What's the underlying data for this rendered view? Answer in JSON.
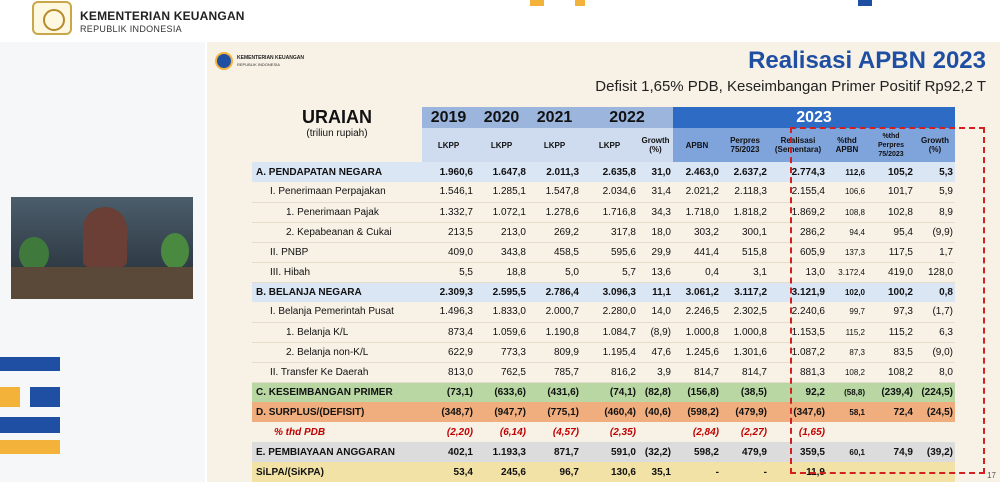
{
  "header": {
    "ministry_name": "KEMENTERIAN KEUANGAN",
    "ministry_sub": "REPUBLIK INDONESIA"
  },
  "slide": {
    "logo_name": "KEMENTERIAN KEUANGAN",
    "logo_sub": "REPUBLIK INDONESIA",
    "title": "Realisasi APBN 2023",
    "subtitle": "Defisit 1,65% PDB, Keseimbangan Primer Positif Rp92,2 T",
    "page_number": "17"
  },
  "table": {
    "uraian_label": "URAIAN",
    "unit_label": "(triliun rupiah)",
    "years": [
      "2019",
      "2020",
      "2021",
      "2022",
      "2023"
    ],
    "subheaders": [
      "LKPP",
      "LKPP",
      "LKPP",
      "LKPP",
      "Growth (%)",
      "APBN",
      "Perpres 75/2023",
      "Realisasi (Sementara)",
      "%thd APBN",
      "%thd Perpres 75/2023",
      "Growth (%)"
    ],
    "rows": [
      {
        "label": "A.   PENDAPATAN NEGARA",
        "values": [
          "1.960,6",
          "1.647,8",
          "2.011,3",
          "2.635,8",
          "31,0",
          "2.463,0",
          "2.637,2",
          "2.774,3",
          "112,6",
          "105,2",
          "5,3"
        ]
      },
      {
        "label": "I.    Penerimaan Perpajakan",
        "values": [
          "1.546,1",
          "1.285,1",
          "1.547,8",
          "2.034,6",
          "31,4",
          "2.021,2",
          "2.118,3",
          "2.155,4",
          "106,6",
          "101,7",
          "5,9"
        ]
      },
      {
        "label": "1.   Penerimaan Pajak",
        "values": [
          "1.332,7",
          "1.072,1",
          "1.278,6",
          "1.716,8",
          "34,3",
          "1.718,0",
          "1.818,2",
          "1.869,2",
          "108,8",
          "102,8",
          "8,9"
        ]
      },
      {
        "label": "2.   Kepabeanan & Cukai",
        "values": [
          "213,5",
          "213,0",
          "269,2",
          "317,8",
          "18,0",
          "303,2",
          "300,1",
          "286,2",
          "94,4",
          "95,4",
          "(9,9)"
        ]
      },
      {
        "label": "II.   PNBP",
        "values": [
          "409,0",
          "343,8",
          "458,5",
          "595,6",
          "29,9",
          "441,4",
          "515,8",
          "605,9",
          "137,3",
          "117,5",
          "1,7"
        ]
      },
      {
        "label": "III.  Hibah",
        "values": [
          "5,5",
          "18,8",
          "5,0",
          "5,7",
          "13,6",
          "0,4",
          "3,1",
          "13,0",
          "3.172,4",
          "419,0",
          "128,0"
        ]
      },
      {
        "label": "B.   BELANJA NEGARA",
        "values": [
          "2.309,3",
          "2.595,5",
          "2.786,4",
          "3.096,3",
          "11,1",
          "3.061,2",
          "3.117,2",
          "3.121,9",
          "102,0",
          "100,2",
          "0,8"
        ]
      },
      {
        "label": "I.    Belanja Pemerintah Pusat",
        "values": [
          "1.496,3",
          "1.833,0",
          "2.000,7",
          "2.280,0",
          "14,0",
          "2.246,5",
          "2.302,5",
          "2.240,6",
          "99,7",
          "97,3",
          "(1,7)"
        ]
      },
      {
        "label": "1.   Belanja K/L",
        "values": [
          "873,4",
          "1.059,6",
          "1.190,8",
          "1.084,7",
          "(8,9)",
          "1.000,8",
          "1.000,8",
          "1.153,5",
          "115,2",
          "115,2",
          "6,3"
        ]
      },
      {
        "label": "2.   Belanja non-K/L",
        "values": [
          "622,9",
          "773,3",
          "809,9",
          "1.195,4",
          "47,6",
          "1.245,6",
          "1.301,6",
          "1.087,2",
          "87,3",
          "83,5",
          "(9,0)"
        ]
      },
      {
        "label": "II.   Transfer Ke Daerah",
        "values": [
          "813,0",
          "762,5",
          "785,7",
          "816,2",
          "3,9",
          "814,7",
          "814,7",
          "881,3",
          "108,2",
          "108,2",
          "8,0"
        ]
      },
      {
        "label": "C.   KESEIMBANGAN PRIMER",
        "values": [
          "(73,1)",
          "(633,6)",
          "(431,6)",
          "(74,1)",
          "(82,8)",
          "(156,8)",
          "(38,5)",
          "92,2",
          "(58,8)",
          "(239,4)",
          "(224,5)"
        ]
      },
      {
        "label": "D.   SURPLUS/(DEFISIT)",
        "values": [
          "(348,7)",
          "(947,7)",
          "(775,1)",
          "(460,4)",
          "(40,6)",
          "(598,2)",
          "(479,9)",
          "(347,6)",
          "58,1",
          "72,4",
          "(24,5)"
        ]
      },
      {
        "label": "% thd PDB",
        "values": [
          "(2,20)",
          "(6,14)",
          "(4,57)",
          "(2,35)",
          "",
          "(2,84)",
          "(2,27)",
          "(1,65)",
          "",
          "",
          ""
        ]
      },
      {
        "label": "E.   PEMBIAYAAN ANGGARAN",
        "values": [
          "402,1",
          "1.193,3",
          "871,7",
          "591,0",
          "(32,2)",
          "598,2",
          "479,9",
          "359,5",
          "60,1",
          "74,9",
          "(39,2)"
        ]
      },
      {
        "label": "SiLPA/(SiKPA)",
        "values": [
          "53,4",
          "245,6",
          "96,7",
          "130,6",
          "35,1",
          "-",
          "-",
          "11,9",
          "",
          "",
          ""
        ]
      }
    ]
  },
  "colors": {
    "title_blue": "#1f4fa3",
    "year_2023_blue": "#2e6bc4",
    "highlight_red": "#d21f1f"
  }
}
